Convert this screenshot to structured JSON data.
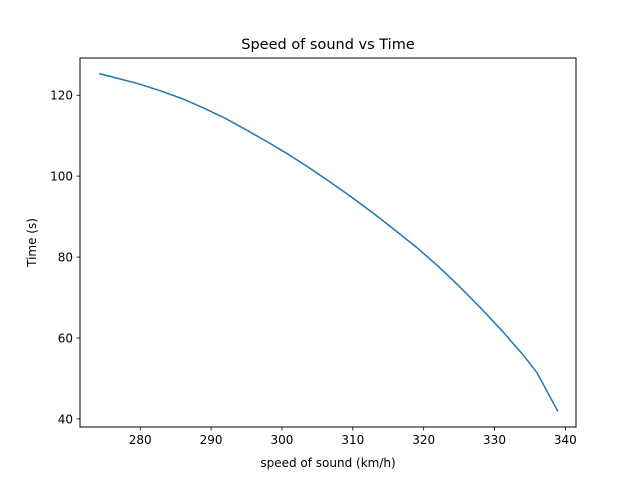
{
  "chart_data": {
    "type": "line",
    "title": "Speed of sound vs Time",
    "xlabel": "speed of sound (km/h)",
    "ylabel": "Time (s)",
    "xlim": [
      271.5,
      341.5
    ],
    "ylim": [
      38.0,
      129.2
    ],
    "xticks": [
      280,
      290,
      300,
      310,
      320,
      330,
      340
    ],
    "yticks": [
      40,
      60,
      80,
      100,
      120
    ],
    "grid": false,
    "legend": "none",
    "series": [
      {
        "color": "#1f77b4",
        "x": [
          274.3,
          277.0,
          280.0,
          283.0,
          286.0,
          289.0,
          292.0,
          295.0,
          298.0,
          301.0,
          304.0,
          307.0,
          310.0,
          313.0,
          316.0,
          319.0,
          322.0,
          325.0,
          328.0,
          331.0,
          334.0,
          336.0,
          338.9
        ],
        "y": [
          125.3,
          124.1,
          122.7,
          121.0,
          119.1,
          116.8,
          114.3,
          111.4,
          108.4,
          105.3,
          101.9,
          98.3,
          94.6,
          90.7,
          86.6,
          82.4,
          77.8,
          72.8,
          67.5,
          61.9,
          55.9,
          51.4,
          42.0
        ]
      }
    ]
  }
}
